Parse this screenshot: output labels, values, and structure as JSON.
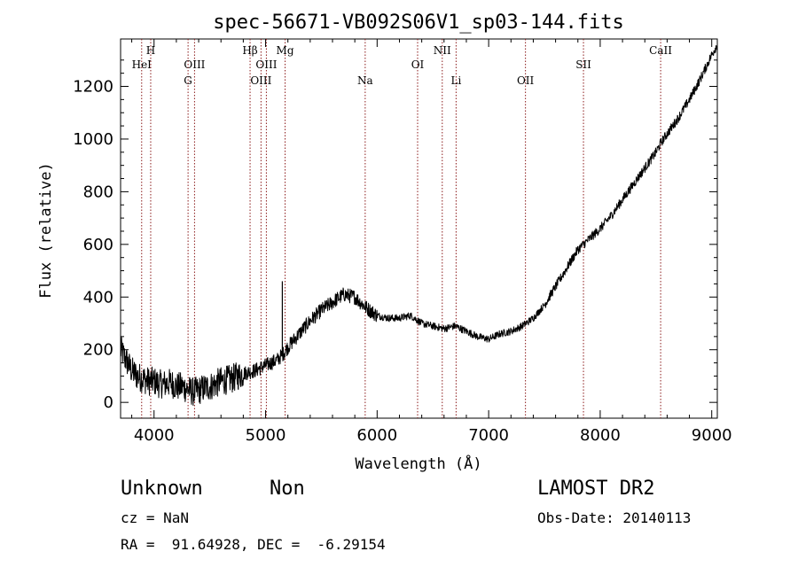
{
  "chart_data": {
    "type": "line",
    "title": "spec-56671-VB092S06V1_sp03-144.fits",
    "xlabel": "Wavelength (Å)",
    "ylabel": "Flux (relative)",
    "xlim": [
      3700,
      9050
    ],
    "ylim": [
      -60,
      1380
    ],
    "x_ticks": [
      4000,
      5000,
      6000,
      7000,
      8000,
      9000
    ],
    "y_ticks": [
      0,
      200,
      400,
      600,
      800,
      1000,
      1200
    ],
    "grid": false,
    "line_color": "#000000",
    "marker_color": "#8b1a1a",
    "series": [
      {
        "x": [
          3700,
          3750,
          3800,
          3850,
          3900,
          3950,
          4000,
          4050,
          4100,
          4150,
          4200,
          4250,
          4300,
          4350,
          4400,
          4450,
          4500,
          4550,
          4600,
          4650,
          4700,
          4750,
          4800,
          4850,
          4900,
          4950,
          5000,
          5050,
          5100,
          5150,
          5200,
          5300,
          5400,
          5500,
          5600,
          5700,
          5800,
          5850,
          5900,
          6000,
          6100,
          6200,
          6300,
          6400,
          6500,
          6600,
          6700,
          6800,
          6900,
          7000,
          7100,
          7200,
          7300,
          7400,
          7500,
          7600,
          7700,
          7800,
          7900,
          8000,
          8100,
          8200,
          8300,
          8400,
          8500,
          8550,
          8600,
          8700,
          8800,
          8900,
          9000,
          9050
        ],
        "y": [
          200,
          160,
          120,
          100,
          90,
          80,
          80,
          70,
          70,
          75,
          60,
          60,
          50,
          40,
          45,
          55,
          60,
          70,
          80,
          85,
          90,
          100,
          110,
          115,
          120,
          130,
          140,
          150,
          160,
          180,
          210,
          260,
          310,
          350,
          380,
          410,
          400,
          380,
          360,
          330,
          320,
          320,
          330,
          300,
          290,
          280,
          290,
          270,
          250,
          240,
          260,
          270,
          290,
          320,
          370,
          440,
          510,
          580,
          620,
          660,
          710,
          770,
          830,
          890,
          950,
          990,
          1020,
          1080,
          1150,
          1230,
          1320,
          1360
        ]
      }
    ],
    "spikes": [
      {
        "x": 5150,
        "y": 460
      }
    ],
    "lines": [
      {
        "label": "HeI",
        "x": 3889,
        "row": 2
      },
      {
        "label": "H",
        "x": 3970,
        "row": 1
      },
      {
        "label": "OIII",
        "x": 4363,
        "row": 2
      },
      {
        "label": "G",
        "x": 4305,
        "row": 3
      },
      {
        "label": "Hβ",
        "x": 4861,
        "row": 1
      },
      {
        "label": "OIII",
        "x": 4959,
        "row": 3
      },
      {
        "label": "OIII",
        "x": 5007,
        "row": 2
      },
      {
        "label": "Mg",
        "x": 5175,
        "row": 1
      },
      {
        "label": "Na",
        "x": 5893,
        "row": 3
      },
      {
        "label": "OI",
        "x": 6363,
        "row": 2
      },
      {
        "label": "NII",
        "x": 6584,
        "row": 1
      },
      {
        "label": "Li",
        "x": 6708,
        "row": 3
      },
      {
        "label": "OII",
        "x": 7330,
        "row": 3
      },
      {
        "label": "SII",
        "x": 7850,
        "row": 2
      },
      {
        "label": "CaII",
        "x": 8542,
        "row": 1
      }
    ]
  },
  "info": {
    "object_class": "Unknown",
    "subclass": "Non",
    "survey": "LAMOST DR2",
    "cz": "cz = NaN",
    "obs_date": "Obs-Date: 20140113",
    "coords": "RA =  91.64928, DEC =  -6.29154"
  }
}
